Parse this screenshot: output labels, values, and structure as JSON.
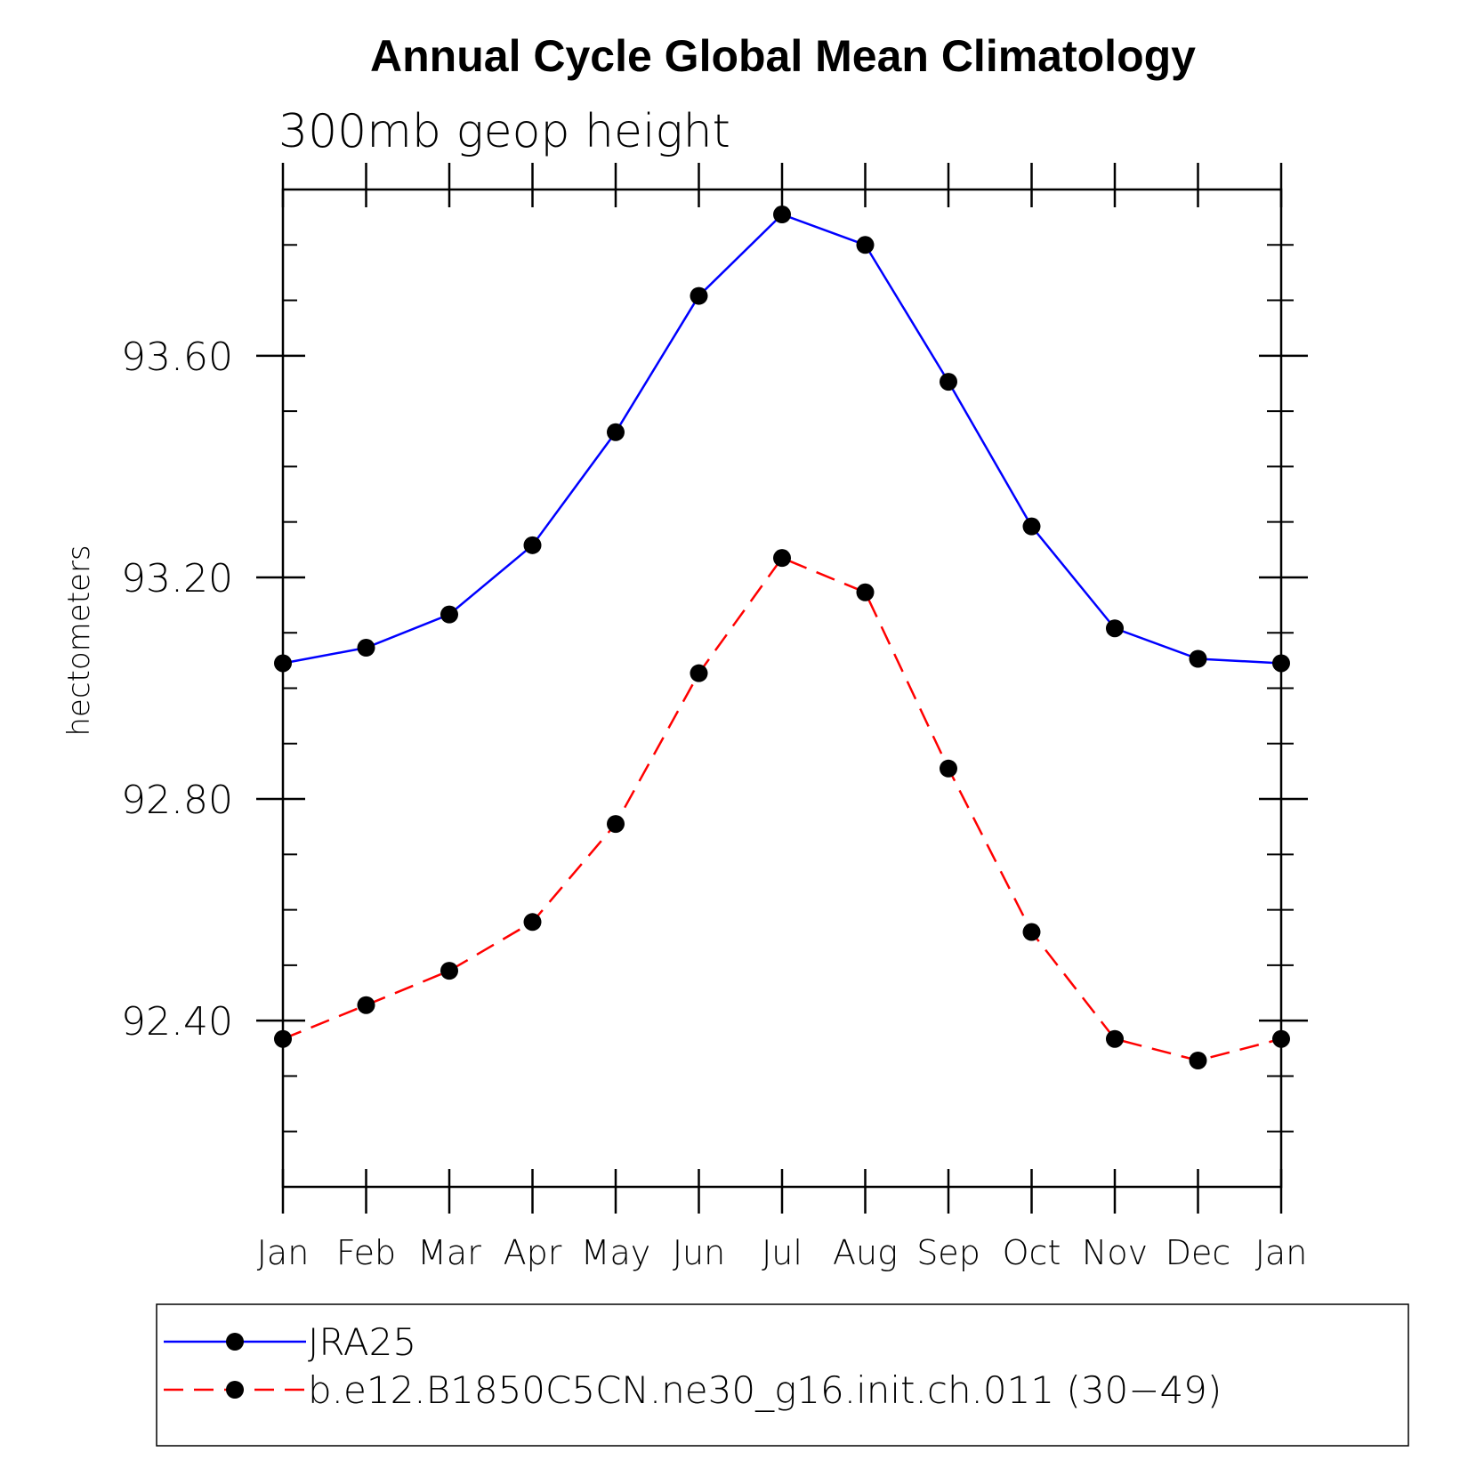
{
  "chart_data": {
    "type": "line",
    "title": "Annual Cycle Global Mean Climatology",
    "subtitle": "300mb geop height",
    "ylabel": "hectometers",
    "xlabel": "",
    "categories": [
      "Jan",
      "Feb",
      "Mar",
      "Apr",
      "May",
      "Jun",
      "Jul",
      "Aug",
      "Sep",
      "Oct",
      "Nov",
      "Dec",
      "Jan"
    ],
    "ylim": [
      92.1,
      93.9
    ],
    "yticks": [
      92.4,
      92.8,
      93.2,
      93.6
    ],
    "ytick_labels": [
      "92.40",
      "92.80",
      "93.20",
      "93.60"
    ],
    "yminor_step": 0.1,
    "grid": false,
    "legend_position": "bottom",
    "series": [
      {
        "name": "JRA25",
        "color": "#0000ff",
        "style": "solid",
        "marker": "filled-circle",
        "values": [
          93.045,
          93.073,
          93.133,
          93.258,
          93.462,
          93.708,
          93.855,
          93.8,
          93.553,
          93.292,
          93.108,
          93.053,
          93.045
        ]
      },
      {
        "name": "b.e12.B1850C5CN.ne30_g16.init.ch.011 (30−49)",
        "color": "#ff0000",
        "style": "dashed",
        "marker": "filled-circle",
        "values": [
          92.367,
          92.428,
          92.49,
          92.578,
          92.755,
          93.027,
          93.235,
          93.173,
          92.855,
          92.56,
          92.367,
          92.328,
          92.367
        ]
      }
    ]
  }
}
